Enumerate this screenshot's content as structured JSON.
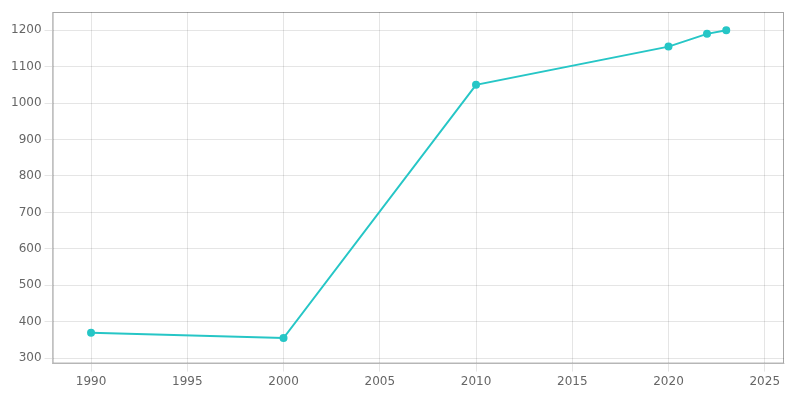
{
  "chart_data": {
    "type": "line",
    "x": [
      1990,
      2000,
      2010,
      2020,
      2022,
      2023
    ],
    "values": [
      370,
      355,
      1050,
      1155,
      1190,
      1200
    ],
    "color": "#26c6c6",
    "marker": "circle",
    "xlim": [
      1988,
      2026
    ],
    "ylim": [
      285,
      1250
    ],
    "xticks": [
      1990,
      1995,
      2000,
      2005,
      2010,
      2015,
      2020,
      2025
    ],
    "yticks": [
      300,
      400,
      500,
      600,
      700,
      800,
      900,
      1000,
      1100,
      1200
    ],
    "grid": true
  }
}
